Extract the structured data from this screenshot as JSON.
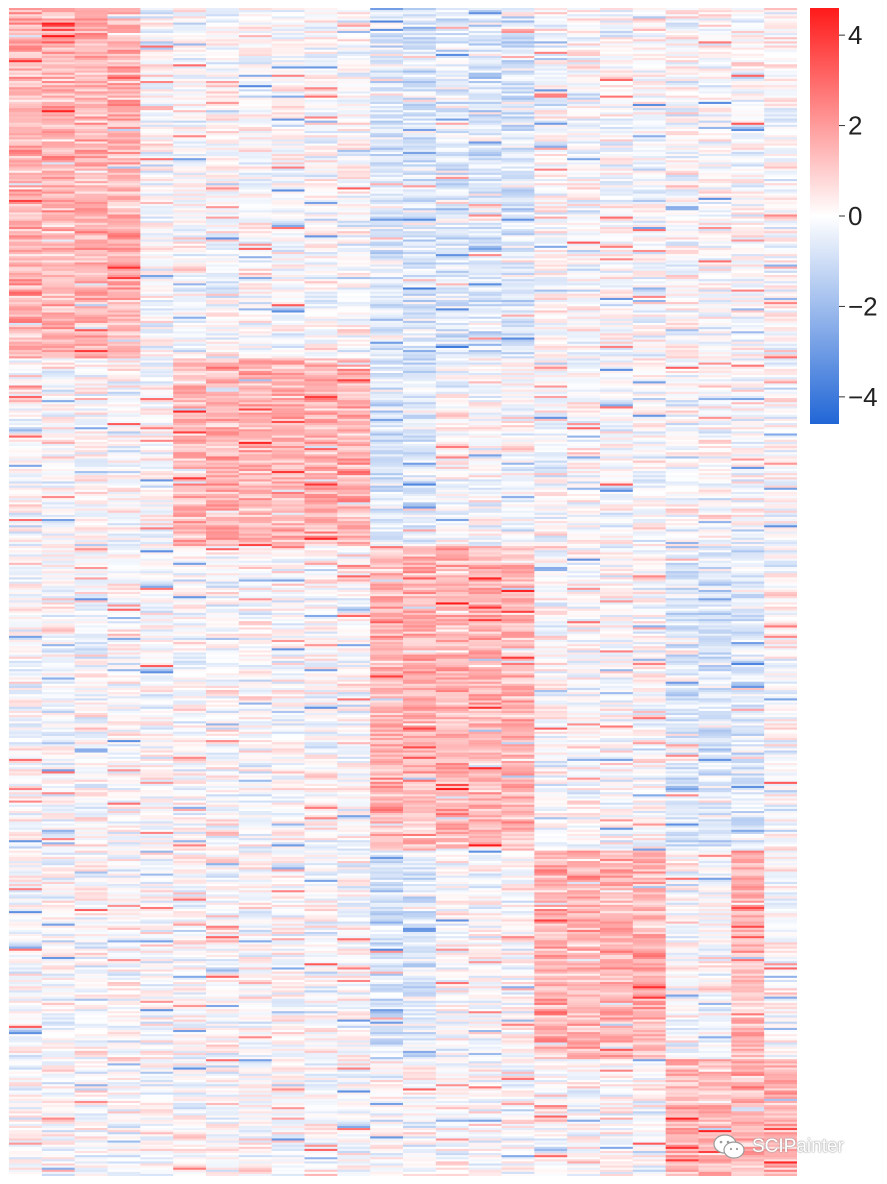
{
  "chart_data": {
    "type": "heatmap",
    "n_columns": 24,
    "n_rows": 560,
    "value_range": [
      -4.6,
      4.6
    ],
    "colorscale": {
      "low": "#2166d6",
      "mid": "#ffffff",
      "high": "#ff1a1a"
    },
    "legend": {
      "placement": "right",
      "ticks": [
        4,
        2,
        0,
        -2,
        -4
      ],
      "tick_labels": [
        "4",
        "2",
        "0",
        "−2",
        "−4"
      ]
    },
    "clusters": [
      {
        "row_range": [
          0,
          0.3
        ],
        "high_columns": [
          0,
          1,
          2,
          3
        ],
        "low_columns": [
          11,
          12,
          13,
          14,
          15
        ]
      },
      {
        "row_range": [
          0.3,
          0.46
        ],
        "high_columns": [
          5,
          6,
          7,
          8,
          9,
          10
        ],
        "low_columns": [
          11,
          12
        ]
      },
      {
        "row_range": [
          0.46,
          0.72
        ],
        "high_columns": [
          11,
          12,
          13,
          14,
          15
        ],
        "low_columns": [
          20,
          21,
          22
        ]
      },
      {
        "row_range": [
          0.72,
          0.9
        ],
        "high_columns": [
          16,
          17,
          18,
          19,
          22
        ],
        "low_columns": [
          11,
          12
        ]
      },
      {
        "row_range": [
          0.9,
          1.0
        ],
        "high_columns": [
          20,
          21,
          22,
          23
        ],
        "low_columns": []
      }
    ],
    "title": "",
    "xlabel": "",
    "ylabel": ""
  },
  "watermark": {
    "text": "SCIPainter",
    "icon": "wechat-icon"
  }
}
